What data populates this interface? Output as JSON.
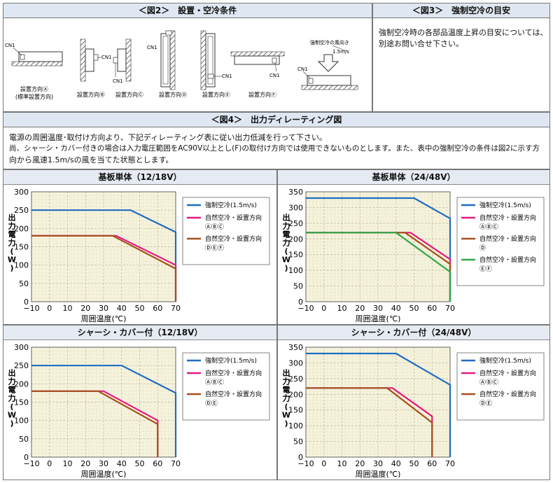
{
  "fig2": {
    "title": "＜図2＞　設置・空冷条件",
    "cn1_label": "CN1",
    "airflow_title": "強制空冷の風向き",
    "airflow_speed": "1.5m/s",
    "captions": [
      "設置方向Ⓐ",
      "(標準設置方向)",
      "設置方向Ⓑ",
      "設置方向Ⓒ",
      "設置方向Ⓓ",
      "設置方向Ⓔ",
      "設置方向Ⓕ"
    ]
  },
  "fig3": {
    "title": "＜図3＞　強制空冷の目安",
    "text1": "強制空冷時の各部品温度上昇の目安については、",
    "text2": "別途お問い合せ下さい。"
  },
  "fig4": {
    "title": "＜図4＞　出力ディレーティング図",
    "desc1": "電源の周囲温度･取付け方向より、下記ディレーティング表に従い出力低減を行って下さい。",
    "desc2": "尚、シャーシ・カバー付きの場合は入力電圧範囲をAC90V以上とし(F)の取付け方向では使用できないものとします。また、表中の強制空冷の条件は図2に示す方",
    "desc3": "向から風速1.5m/sの風を当てた状態とします。"
  },
  "colors": {
    "blue": "#1f6cc0",
    "pink": "#e5197f",
    "brown": "#a4501e",
    "green": "#2ea84a",
    "plot_bg": "#f6f3dd",
    "grid": "#b8b48a"
  },
  "chart_data": [
    {
      "type": "line",
      "title": "基板単体（12/18V）",
      "xlabel": "周囲温度(℃)",
      "ylabel": "出力電力(W)",
      "xlim": [
        -10,
        70
      ],
      "ylim": [
        0,
        300
      ],
      "xticks": [
        -10,
        0,
        10,
        20,
        30,
        40,
        50,
        60,
        70
      ],
      "yticks": [
        0,
        50,
        100,
        150,
        200,
        250,
        300
      ],
      "series": [
        {
          "name": "強制空冷(1.5m/s)",
          "name2": "",
          "color": "blue",
          "points": [
            [
              -10,
              250
            ],
            [
              45,
              250
            ],
            [
              70,
              190
            ],
            [
              70,
              0
            ]
          ]
        },
        {
          "name": "自然空冷・設置方向",
          "name2": "ⒶⒷⒸ",
          "color": "pink",
          "points": [
            [
              -10,
              180
            ],
            [
              37,
              180
            ],
            [
              70,
              100
            ],
            [
              70,
              0
            ]
          ]
        },
        {
          "name": "自然空冷・設置方向",
          "name2": "ⒹⒺⒻ",
          "color": "brown",
          "points": [
            [
              -10,
              180
            ],
            [
              35,
              180
            ],
            [
              70,
              90
            ],
            [
              70,
              0
            ]
          ]
        }
      ]
    },
    {
      "type": "line",
      "title": "基板単体（24/48V）",
      "xlabel": "周囲温度(℃)",
      "ylabel": "出力電力(W)",
      "xlim": [
        -10,
        70
      ],
      "ylim": [
        0,
        350
      ],
      "xticks": [
        -10,
        0,
        10,
        20,
        30,
        40,
        50,
        60,
        70
      ],
      "yticks": [
        0,
        50,
        100,
        150,
        200,
        250,
        300,
        350
      ],
      "series": [
        {
          "name": "強制空冷(1.5m/s)",
          "name2": "",
          "color": "blue",
          "points": [
            [
              -10,
              330
            ],
            [
              50,
              330
            ],
            [
              70,
              265
            ],
            [
              70,
              0
            ]
          ]
        },
        {
          "name": "自然空冷・設置方向",
          "name2": "ⒶⒷⒸ",
          "color": "pink",
          "points": [
            [
              -10,
              220
            ],
            [
              48,
              220
            ],
            [
              70,
              135
            ],
            [
              70,
              0
            ]
          ]
        },
        {
          "name": "自然空冷・設置方向",
          "name2": "Ⓓ",
          "color": "brown",
          "points": [
            [
              -10,
              220
            ],
            [
              45,
              220
            ],
            [
              70,
              120
            ],
            [
              70,
              0
            ]
          ]
        },
        {
          "name": "自然空冷・設置方向",
          "name2": "ⒺⒻ",
          "color": "green",
          "points": [
            [
              -10,
              220
            ],
            [
              40,
              220
            ],
            [
              70,
              95
            ],
            [
              70,
              0
            ]
          ]
        }
      ]
    },
    {
      "type": "line",
      "title": "シャーシ・カバー付（12/18V）",
      "xlabel": "周囲温度(℃)",
      "ylabel": "出力電力(W)",
      "xlim": [
        -10,
        70
      ],
      "ylim": [
        0,
        300
      ],
      "xticks": [
        -10,
        0,
        10,
        20,
        30,
        40,
        50,
        60,
        70
      ],
      "yticks": [
        0,
        50,
        100,
        150,
        200,
        250,
        300
      ],
      "series": [
        {
          "name": "強制空冷(1.5m/s)",
          "name2": "",
          "color": "blue",
          "points": [
            [
              -10,
              250
            ],
            [
              40,
              250
            ],
            [
              70,
              175
            ],
            [
              70,
              0
            ]
          ]
        },
        {
          "name": "自然空冷・設置方向",
          "name2": "ⒶⒷⒸ",
          "color": "pink",
          "points": [
            [
              -10,
              180
            ],
            [
              30,
              180
            ],
            [
              60,
              100
            ],
            [
              60,
              0
            ]
          ]
        },
        {
          "name": "自然空冷・設置方向",
          "name2": "ⒹⒺ",
          "color": "brown",
          "points": [
            [
              -10,
              180
            ],
            [
              27,
              180
            ],
            [
              60,
              90
            ],
            [
              60,
              0
            ]
          ]
        }
      ]
    },
    {
      "type": "line",
      "title": "シャーシ・カバー付（24/48V）",
      "xlabel": "周囲温度(℃)",
      "ylabel": "出力電力(W)",
      "xlim": [
        -10,
        70
      ],
      "ylim": [
        0,
        350
      ],
      "xticks": [
        -10,
        0,
        10,
        20,
        30,
        40,
        50,
        60,
        70
      ],
      "yticks": [
        0,
        50,
        100,
        150,
        200,
        250,
        300,
        350
      ],
      "series": [
        {
          "name": "強制空冷(1.5m/s)",
          "name2": "",
          "color": "blue",
          "points": [
            [
              -10,
              330
            ],
            [
              40,
              330
            ],
            [
              70,
              230
            ],
            [
              70,
              0
            ]
          ]
        },
        {
          "name": "自然空冷・設置方向",
          "name2": "ⒶⒷⒸ",
          "color": "pink",
          "points": [
            [
              -10,
              220
            ],
            [
              38,
              220
            ],
            [
              60,
              130
            ],
            [
              60,
              0
            ]
          ]
        },
        {
          "name": "自然空冷・設置方向",
          "name2": "ⒹⒺ",
          "color": "brown",
          "points": [
            [
              -10,
              220
            ],
            [
              35,
              220
            ],
            [
              60,
              110
            ],
            [
              60,
              0
            ]
          ]
        }
      ]
    }
  ]
}
